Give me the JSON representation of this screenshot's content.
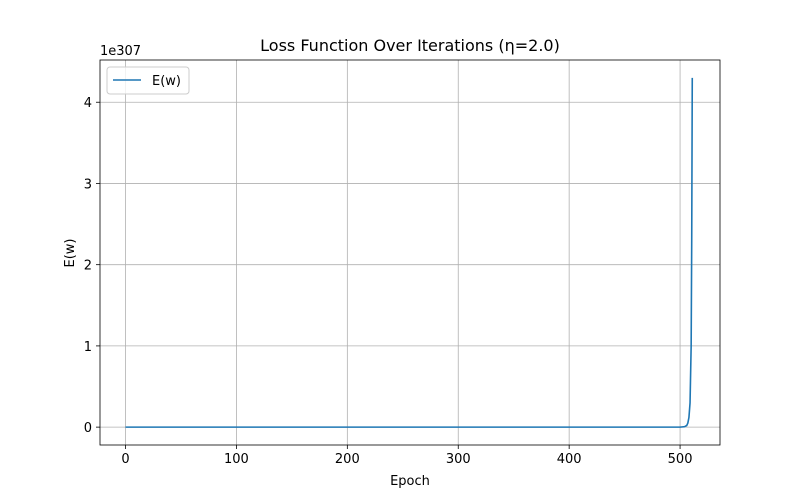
{
  "chart_data": {
    "type": "line",
    "title": "Loss Function Over Iterations (η=2.0)",
    "xlabel": "Epoch",
    "ylabel": "E(w)",
    "y_offset_text": "1e307",
    "xlim": [
      -23,
      536
    ],
    "ylim": [
      -0.22,
      4.52
    ],
    "x_ticks": [
      0,
      100,
      200,
      300,
      400,
      500
    ],
    "y_ticks": [
      0,
      1,
      2,
      3,
      4
    ],
    "grid": true,
    "legend": {
      "placement": "top-left",
      "entries": [
        "E(w)"
      ]
    },
    "series": [
      {
        "name": "E(w)",
        "color": "#1f77b4",
        "x": [
          0,
          100,
          200,
          300,
          400,
          500,
          504,
          506,
          507,
          508,
          509,
          510,
          510.5,
          511
        ],
        "y": [
          0,
          0,
          0,
          0,
          0,
          0,
          0.005,
          0.02,
          0.05,
          0.12,
          0.3,
          1.0,
          2.3,
          4.3
        ]
      }
    ]
  }
}
